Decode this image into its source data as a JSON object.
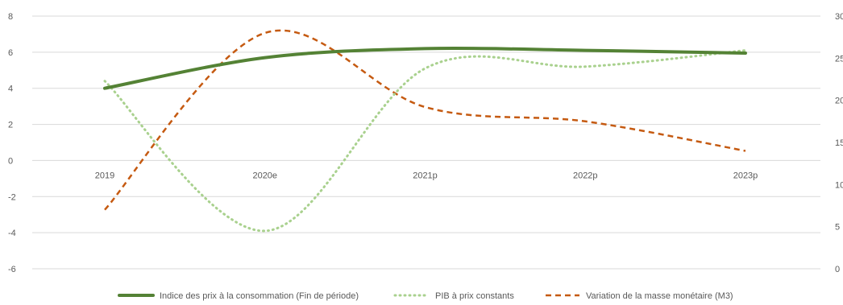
{
  "chart_data": {
    "type": "line",
    "categories": [
      "2019",
      "2020e",
      "2021p",
      "2022p",
      "2023p"
    ],
    "y_left": {
      "ticks": [
        "-6",
        "-4",
        "-2",
        "0",
        "2",
        "4",
        "6",
        "8"
      ],
      "range": [
        -6,
        8
      ]
    },
    "y_right": {
      "ticks": [
        "0",
        "5",
        "10",
        "15",
        "20",
        "25",
        "30"
      ],
      "range": [
        0,
        30
      ]
    },
    "grid": "horizontal",
    "legend_position": "bottom",
    "series": [
      {
        "name": "Indice des prix à la consommation (Fin de période)",
        "axis": "left",
        "style": "solid",
        "color": "#548235",
        "values": [
          4.0,
          5.7,
          6.2,
          6.1,
          5.95
        ]
      },
      {
        "name": "PIB à prix constants",
        "axis": "left",
        "style": "dotted",
        "color": "#a9d18e",
        "values": [
          4.4,
          -3.9,
          5.1,
          5.2,
          6.1
        ]
      },
      {
        "name": "Variation de la masse monétaire (M3)",
        "axis": "right",
        "style": "dashed",
        "color": "#c55a11",
        "values": [
          7.0,
          28.0,
          19.2,
          17.5,
          14.0
        ]
      }
    ]
  }
}
